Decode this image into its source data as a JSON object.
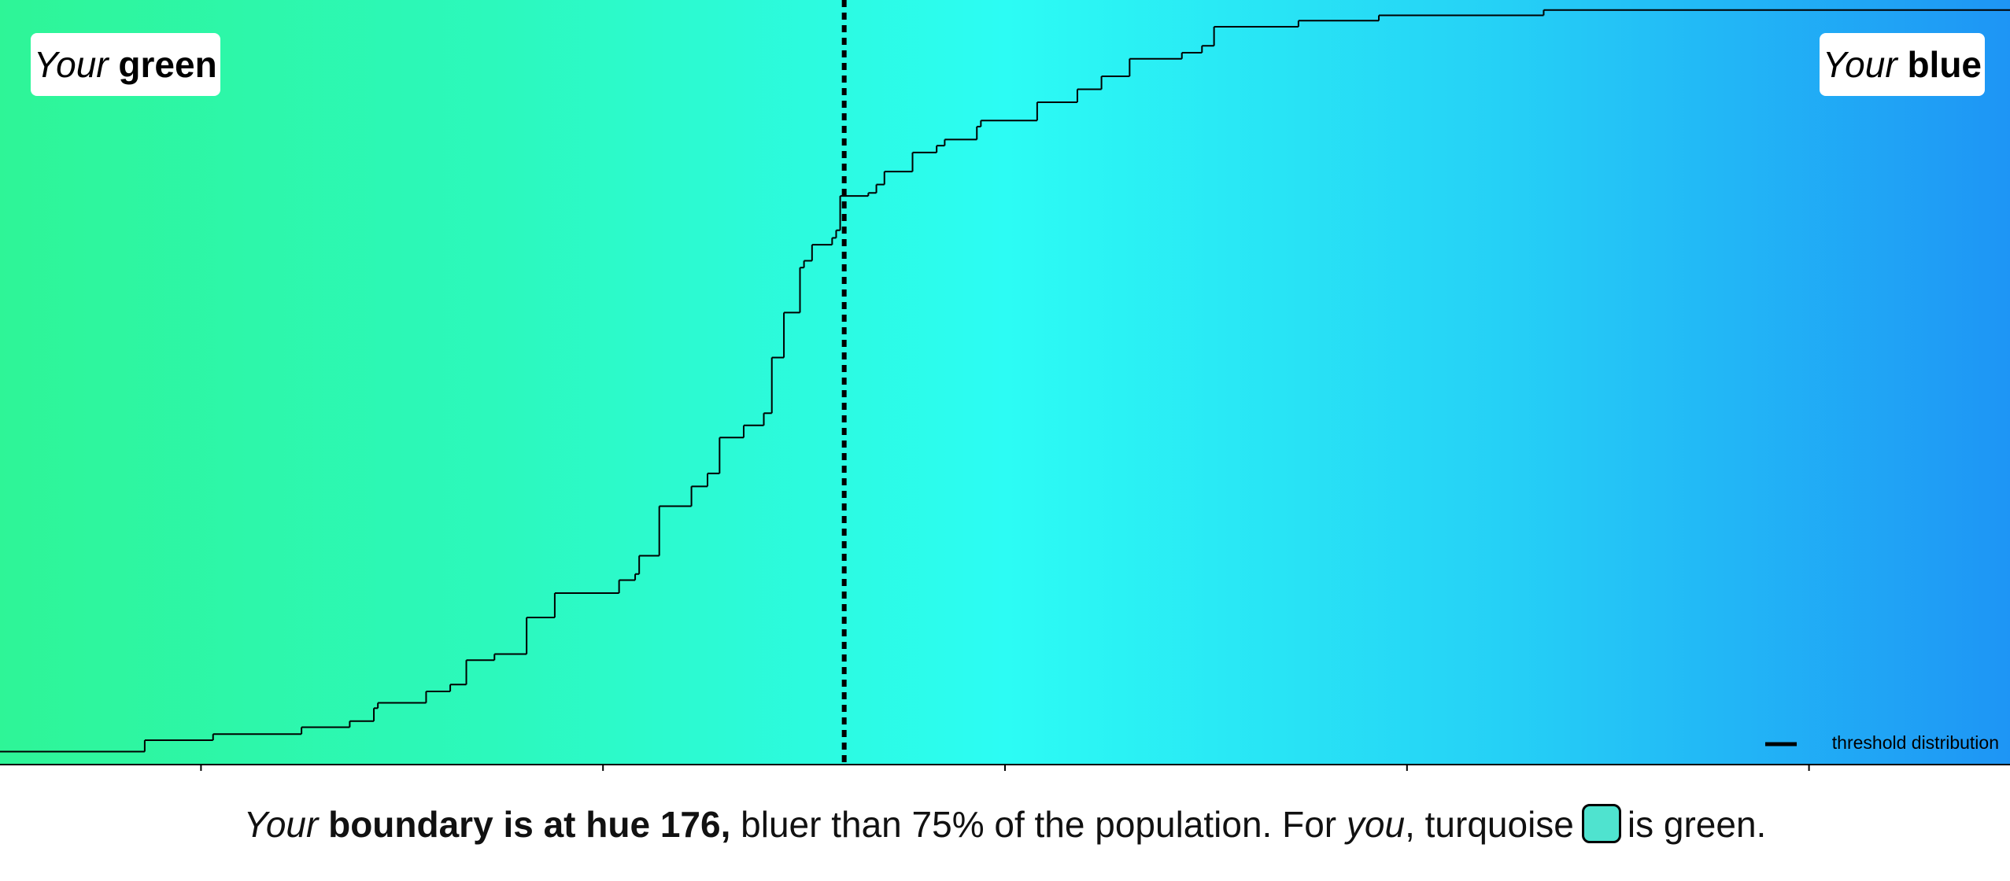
{
  "chart_data": {
    "type": "step",
    "xlim": [
      155,
      205
    ],
    "ylim": [
      0,
      100
    ],
    "xticks": [
      160,
      170,
      180,
      190,
      200
    ],
    "x": [
      155.0,
      158.6,
      160.3,
      162.5,
      163.7,
      164.3,
      164.4,
      165.6,
      166.2,
      166.6,
      167.3,
      168.1,
      168.8,
      170.4,
      170.8,
      170.9,
      171.4,
      172.2,
      172.6,
      172.9,
      173.5,
      174.0,
      174.2,
      174.5,
      174.9,
      175.0,
      175.2,
      175.7,
      175.8,
      175.9,
      176.6,
      176.8,
      177.0,
      177.7,
      178.3,
      178.5,
      179.3,
      179.4,
      180.8,
      181.8,
      182.4,
      183.1,
      184.4,
      184.9,
      185.2,
      187.3,
      189.3,
      193.4,
      205.0
    ],
    "series": [
      {
        "name": "threshold distribution",
        "color": "#000000",
        "values": [
          1.7,
          3.2,
          4.0,
          4.9,
          5.7,
          7.4,
          8.1,
          9.6,
          10.5,
          13.7,
          14.5,
          19.3,
          22.5,
          24.2,
          25.0,
          27.4,
          33.9,
          36.5,
          38.2,
          42.9,
          44.5,
          46.1,
          53.4,
          59.3,
          65.2,
          66.1,
          68.2,
          69.1,
          70.1,
          74.6,
          75.0,
          76.1,
          77.8,
          80.3,
          81.2,
          82.0,
          83.7,
          84.5,
          86.9,
          88.6,
          90.3,
          92.6,
          93.4,
          94.3,
          96.8,
          97.6,
          98.3,
          99.0,
          99.0
        ]
      }
    ],
    "boundary_hue": 176,
    "legend": "bottom-right",
    "region_labels": [
      {
        "italic": "Your",
        "bold": "green"
      },
      {
        "italic": "Your",
        "bold": "blue"
      }
    ]
  },
  "caption": {
    "italic_1": "Your",
    "bold": "boundary is at hue 176,",
    "text_1": "bluer than 75% of the population. For",
    "italic_2": "you",
    "text_2": ", turquoise",
    "text_3": "is green."
  }
}
